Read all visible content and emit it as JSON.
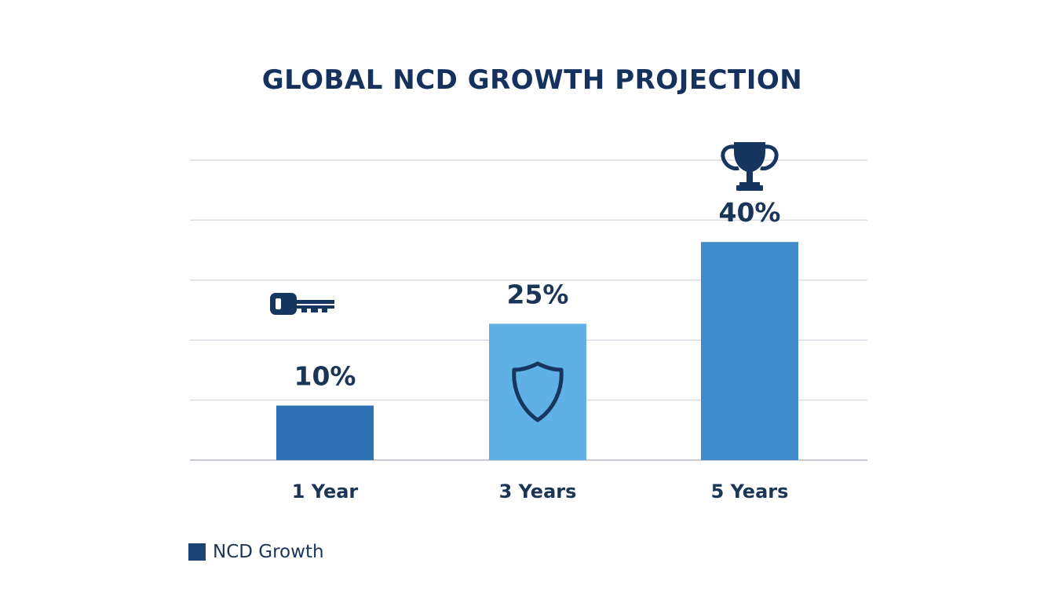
{
  "chart_data": {
    "type": "bar",
    "title": "GLOBAL NCD GROWTH PROJECTION",
    "categories": [
      "1 Year",
      "3 Years",
      "5 Years"
    ],
    "series": [
      {
        "name": "NCD Growth",
        "values": [
          10,
          25,
          40
        ],
        "data_labels": [
          "10%",
          "25%",
          "40%"
        ],
        "colors": [
          "#2f71b5",
          "#5eb0e5",
          "#3f8bcb"
        ]
      }
    ],
    "bar_icons": [
      "key-icon",
      "shield-icon",
      "trophy-icon"
    ],
    "xlabel": "",
    "ylabel": "",
    "ylim": [
      0,
      55
    ],
    "grid": true,
    "legend": "bottom-left"
  },
  "colors": {
    "title": "#15325e",
    "label": "#1b3557",
    "icon": "#17365f",
    "grid": "#d9dde3",
    "axis": "#c7ccd3",
    "legend_swatch": "#1b4374"
  }
}
